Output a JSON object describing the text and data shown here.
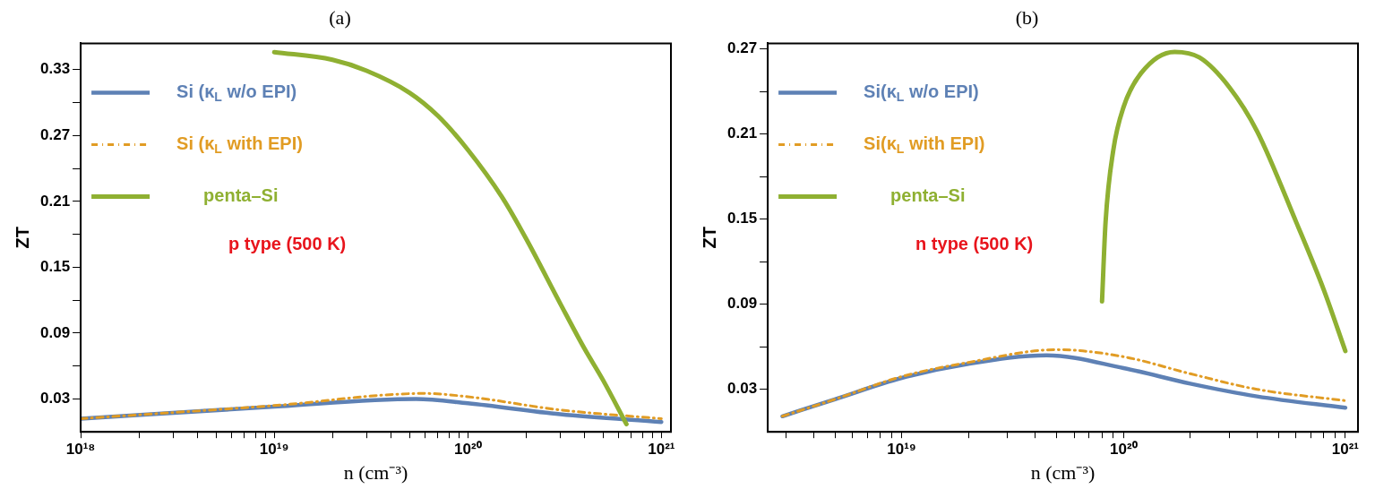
{
  "chart_data": [
    {
      "type": "line",
      "title": "(a)",
      "xlabel": "n (cm⁻³)",
      "ylabel": "ZT",
      "log": "x",
      "legend": "top left",
      "marker": "none",
      "xlim": [
        1e+18,
        1.12e+21
      ],
      "ylim": [
        0,
        0.354
      ],
      "xticks": [
        {
          "value": 1e+18,
          "label": "10¹⁸"
        },
        {
          "value": 2e+18,
          "label": null
        },
        {
          "value": 3e+18,
          "label": null
        },
        {
          "value": 4e+18,
          "label": null
        },
        {
          "value": 5e+18,
          "label": null
        },
        {
          "value": 6e+18,
          "label": null
        },
        {
          "value": 7e+18,
          "label": null
        },
        {
          "value": 8e+18,
          "label": null
        },
        {
          "value": 9e+18,
          "label": null
        },
        {
          "value": 1e+19,
          "label": "10¹⁹"
        },
        {
          "value": 2e+19,
          "label": null
        },
        {
          "value": 3e+19,
          "label": null
        },
        {
          "value": 4e+19,
          "label": null
        },
        {
          "value": 5e+19,
          "label": null
        },
        {
          "value": 6e+19,
          "label": null
        },
        {
          "value": 7e+19,
          "label": null
        },
        {
          "value": 8e+19,
          "label": null
        },
        {
          "value": 9e+19,
          "label": null
        },
        {
          "value": 1e+20,
          "label": "10²⁰"
        },
        {
          "value": 2e+20,
          "label": null
        },
        {
          "value": 3e+20,
          "label": null
        },
        {
          "value": 4e+20,
          "label": null
        },
        {
          "value": 5e+20,
          "label": null
        },
        {
          "value": 6e+20,
          "label": null
        },
        {
          "value": 7e+20,
          "label": null
        },
        {
          "value": 8e+20,
          "label": null
        },
        {
          "value": 9e+20,
          "label": null
        },
        {
          "value": 1e+21,
          "label": "10²¹"
        }
      ],
      "yticks": [
        0.03,
        {
          "value": 0.06,
          "label": null
        },
        0.09,
        {
          "value": 0.12,
          "label": null
        },
        0.15,
        {
          "value": 0.18,
          "label": null
        },
        0.21,
        {
          "value": 0.24,
          "label": null
        },
        0.27,
        {
          "value": 0.3,
          "label": null
        },
        0.33
      ],
      "series": [
        {
          "name": "Si (κ$_{L}$ w/o EPI)",
          "color": "#5e81b5",
          "line_style": "solid",
          "x": [
            1e+18,
            1e+19,
            5.4e+19,
            1e+20,
            3e+20,
            1e+21
          ],
          "values": [
            0.012,
            0.023,
            0.03,
            0.026,
            0.016,
            0.009
          ]
        },
        {
          "name": "Si (κ$_{L}$ with EPI)",
          "color": "#e19c24",
          "line_style": "dashed",
          "x": [
            1e+18,
            1e+19,
            6e+19,
            1e+20,
            3e+20,
            1e+21
          ],
          "values": [
            0.012,
            0.024,
            0.035,
            0.032,
            0.02,
            0.012
          ]
        },
        {
          "name": "penta–Si",
          "color": "#8fb032",
          "line_style": "solid",
          "x": [
            1e+19,
            2e+19,
            3e+19,
            5e+19,
            7e+19,
            1e+20,
            1.5e+20,
            2e+20,
            3e+20,
            4e+20,
            5e+20,
            6.6e+20
          ],
          "values": [
            0.346,
            0.339,
            0.329,
            0.309,
            0.288,
            0.257,
            0.214,
            0.176,
            0.117,
            0.076,
            0.047,
            0.007
          ]
        }
      ],
      "annotations": [
        "p type (500 K)"
      ]
    },
    {
      "type": "line",
      "title": "(b)",
      "xlabel": "n (cm⁻³)",
      "ylabel": "ZT",
      "log": "x",
      "legend": "top left",
      "marker": "none",
      "xlim": [
        2.49e+18,
        1.14e+21
      ],
      "ylim": [
        0,
        0.274
      ],
      "xticks": [
        {
          "value": 3e+18,
          "label": null
        },
        {
          "value": 4e+18,
          "label": null
        },
        {
          "value": 5e+18,
          "label": null
        },
        {
          "value": 6e+18,
          "label": null
        },
        {
          "value": 7e+18,
          "label": null
        },
        {
          "value": 8e+18,
          "label": null
        },
        {
          "value": 9e+18,
          "label": null
        },
        {
          "value": 1e+19,
          "label": "10¹⁹"
        },
        {
          "value": 2e+19,
          "label": null
        },
        {
          "value": 3e+19,
          "label": null
        },
        {
          "value": 4e+19,
          "label": null
        },
        {
          "value": 5e+19,
          "label": null
        },
        {
          "value": 6e+19,
          "label": null
        },
        {
          "value": 7e+19,
          "label": null
        },
        {
          "value": 8e+19,
          "label": null
        },
        {
          "value": 9e+19,
          "label": null
        },
        {
          "value": 1e+20,
          "label": "10²⁰"
        },
        {
          "value": 2e+20,
          "label": null
        },
        {
          "value": 3e+20,
          "label": null
        },
        {
          "value": 4e+20,
          "label": null
        },
        {
          "value": 5e+20,
          "label": null
        },
        {
          "value": 6e+20,
          "label": null
        },
        {
          "value": 7e+20,
          "label": null
        },
        {
          "value": 8e+20,
          "label": null
        },
        {
          "value": 9e+20,
          "label": null
        },
        {
          "value": 1e+21,
          "label": "10²¹"
        }
      ],
      "yticks": [
        0.03,
        {
          "value": 0.06,
          "label": null
        },
        0.09,
        {
          "value": 0.12,
          "label": null
        },
        0.15,
        {
          "value": 0.18,
          "label": null
        },
        0.21,
        {
          "value": 0.24,
          "label": null
        },
        0.27
      ],
      "series": [
        {
          "name": "Si(κ$_{L}$ w/o EPI)",
          "color": "#5e81b5",
          "line_style": "solid",
          "x": [
            2.9e+18,
            5e+18,
            1e+19,
            2e+19,
            4.5e+19,
            1e+20,
            2e+20,
            4e+20,
            1e+21
          ],
          "values": [
            0.011,
            0.023,
            0.038,
            0.048,
            0.054,
            0.045,
            0.034,
            0.025,
            0.017
          ]
        },
        {
          "name": "Si(κ$_{L}$ with EPI)",
          "color": "#e19c24",
          "line_style": "dashed",
          "x": [
            2.9e+18,
            5e+18,
            1e+19,
            2e+19,
            5e+19,
            1e+20,
            2e+20,
            4e+20,
            1e+21
          ],
          "values": [
            0.011,
            0.023,
            0.039,
            0.049,
            0.058,
            0.053,
            0.041,
            0.03,
            0.022
          ]
        },
        {
          "name": "penta–Si",
          "color": "#8fb032",
          "line_style": "solid",
          "x": [
            8e+19,
            8.3e+19,
            9e+19,
            1e+20,
            1.2e+20,
            1.7e+20,
            2.2e+20,
            3e+20,
            4e+20,
            6e+20,
            8e+20,
            1e+21
          ],
          "values": [
            0.092,
            0.148,
            0.199,
            0.229,
            0.253,
            0.268,
            0.264,
            0.243,
            0.212,
            0.148,
            0.1,
            0.057
          ]
        }
      ],
      "annotations": [
        "n type (500 K)"
      ]
    }
  ]
}
